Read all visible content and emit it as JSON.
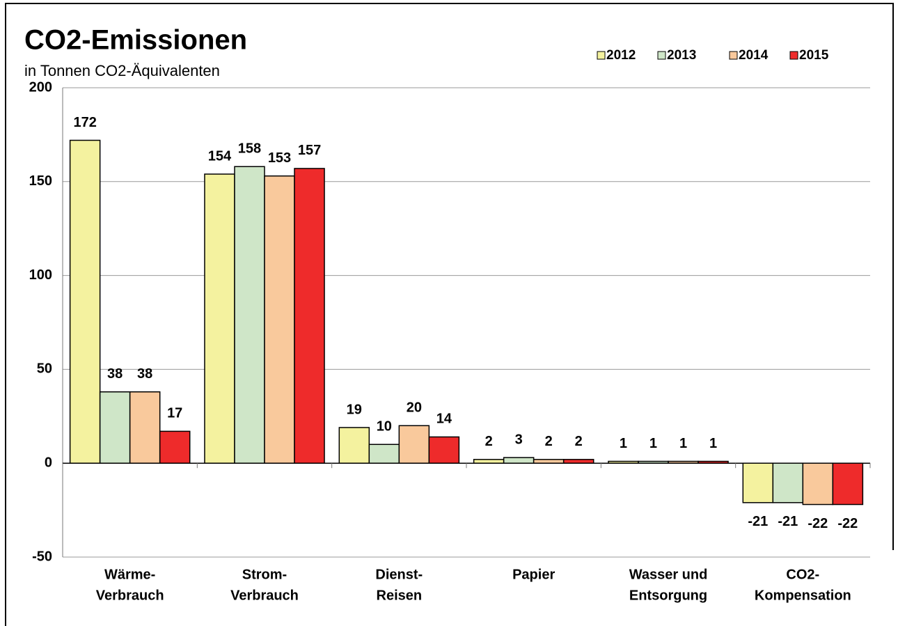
{
  "chart_data": {
    "type": "bar",
    "title": "CO2-Emissionen",
    "subtitle": "in Tonnen CO2-Äquivalenten",
    "categories": [
      [
        "Wärme-",
        "Verbrauch"
      ],
      [
        "Strom-",
        "Verbrauch"
      ],
      [
        "Dienst-",
        "Reisen"
      ],
      [
        "Papier"
      ],
      [
        "Wasser und",
        "Entsorgung"
      ],
      [
        "CO2-",
        "Kompensation"
      ]
    ],
    "series": [
      {
        "name": "2012",
        "color": "#f4f29f",
        "values": [
          172,
          154,
          19,
          2,
          1,
          -21
        ]
      },
      {
        "name": "2013",
        "color": "#cfe6c8",
        "values": [
          38,
          158,
          10,
          3,
          1,
          -21
        ]
      },
      {
        "name": "2014",
        "color": "#f9c99c",
        "values": [
          38,
          153,
          20,
          2,
          1,
          -22
        ]
      },
      {
        "name": "2015",
        "color": "#ee2b2b",
        "values": [
          17,
          157,
          14,
          2,
          1,
          -22
        ]
      }
    ],
    "ylim": [
      -50,
      200
    ],
    "yticks": [
      -50,
      0,
      50,
      100,
      150,
      200
    ],
    "grid": true,
    "legend": "top-right"
  }
}
